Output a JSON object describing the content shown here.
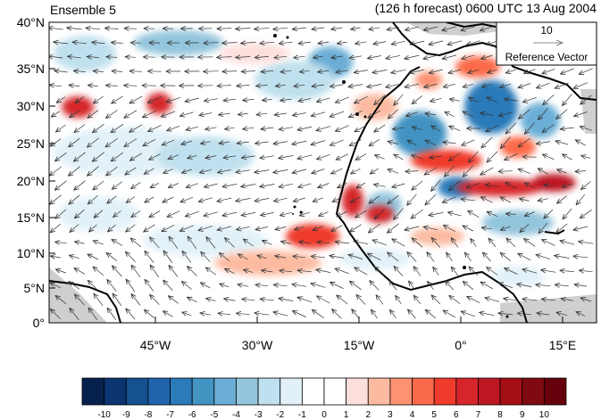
{
  "header": {
    "left_title": "Ensemble 5",
    "right_title": "(126 h forecast) 0600 UTC 13 Aug 2004"
  },
  "map": {
    "lat_labels": [
      "40°N",
      "35°N",
      "30°N",
      "25°N",
      "20°N",
      "15°N",
      "10°N",
      "5°N",
      "0°"
    ],
    "lon_labels": [
      "45°W",
      "30°W",
      "15°W",
      "0°",
      "15°E"
    ],
    "reference_vector": {
      "magnitude_label": "10",
      "caption": "Reference Vector"
    },
    "colors": {
      "land_mask": "#cfcfcf",
      "coastline": "#000000",
      "arrows": "#333333"
    }
  },
  "colorbar": {
    "labels": [
      "-10",
      "-9",
      "-8",
      "-7",
      "-6",
      "-5",
      "-4",
      "-3",
      "-2",
      "-1",
      "0",
      "1",
      "2",
      "3",
      "4",
      "5",
      "6",
      "7",
      "8",
      "9",
      "10"
    ],
    "colors": [
      "#06214d",
      "#0b3470",
      "#15508f",
      "#1f64ad",
      "#2b7ab9",
      "#4393c3",
      "#6aaed6",
      "#93c5dc",
      "#bfe0ee",
      "#e2f1f8",
      "#ffffff",
      "#ffffff",
      "#fde0dd",
      "#fcbba1",
      "#fc9272",
      "#fb6a4a",
      "#ef3b2c",
      "#d6262b",
      "#bd1822",
      "#a50f15",
      "#7f0a12",
      "#67000d"
    ]
  }
}
